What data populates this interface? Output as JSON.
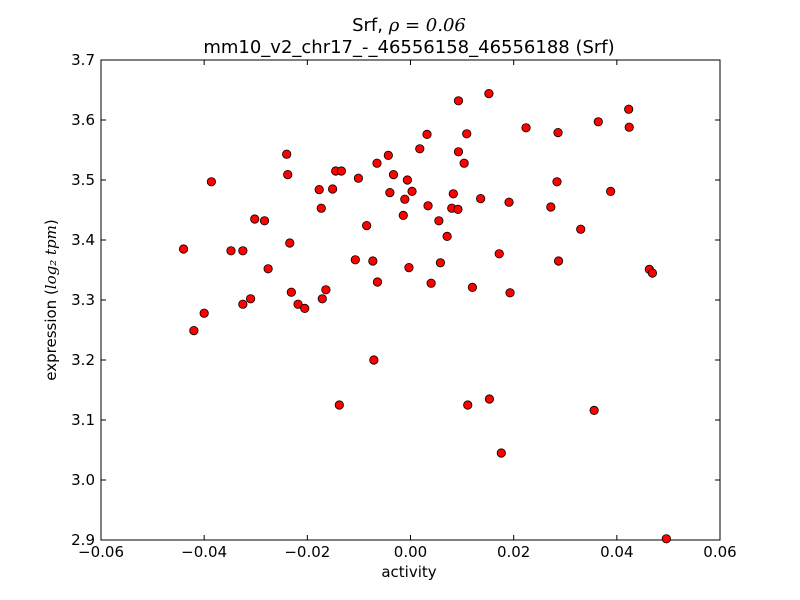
{
  "chart_data": {
    "type": "scatter",
    "title_prefix": "Srf, ",
    "title_rho": "ρ = 0.06",
    "subtitle": "mm10_v2_chr17_-_46556158_46556188 (Srf)",
    "xlabel": "activity",
    "ylabel_text": "expression",
    "ylabel_units": "log₂ tpm",
    "xlim": [
      -0.06,
      0.06
    ],
    "ylim": [
      2.9,
      3.7
    ],
    "xticks": [
      "−0.06",
      "−0.04",
      "−0.02",
      "0.00",
      "0.02",
      "0.04",
      "0.06"
    ],
    "xtick_values": [
      -0.06,
      -0.04,
      -0.02,
      0.0,
      0.02,
      0.04,
      0.06
    ],
    "yticks": [
      "2.9",
      "3.0",
      "3.1",
      "3.2",
      "3.3",
      "3.4",
      "3.5",
      "3.6",
      "3.7"
    ],
    "ytick_values": [
      2.9,
      3.0,
      3.1,
      3.2,
      3.3,
      3.4,
      3.5,
      3.6,
      3.7
    ],
    "grid": false,
    "marker_color": "#ff0000",
    "marker_edge": "#000000",
    "points": [
      {
        "x": -0.044,
        "y": 3.385
      },
      {
        "x": -0.042,
        "y": 3.249
      },
      {
        "x": -0.04,
        "y": 3.278
      },
      {
        "x": -0.0386,
        "y": 3.497
      },
      {
        "x": -0.0348,
        "y": 3.382
      },
      {
        "x": -0.0325,
        "y": 3.382
      },
      {
        "x": -0.0325,
        "y": 3.293
      },
      {
        "x": -0.031,
        "y": 3.302
      },
      {
        "x": -0.0302,
        "y": 3.435
      },
      {
        "x": -0.0283,
        "y": 3.432
      },
      {
        "x": -0.0276,
        "y": 3.352
      },
      {
        "x": -0.024,
        "y": 3.543
      },
      {
        "x": -0.0238,
        "y": 3.509
      },
      {
        "x": -0.0234,
        "y": 3.395
      },
      {
        "x": -0.0231,
        "y": 3.313
      },
      {
        "x": -0.0218,
        "y": 3.293
      },
      {
        "x": -0.0205,
        "y": 3.286
      },
      {
        "x": -0.0177,
        "y": 3.484
      },
      {
        "x": -0.0173,
        "y": 3.453
      },
      {
        "x": -0.0171,
        "y": 3.302
      },
      {
        "x": -0.0164,
        "y": 3.317
      },
      {
        "x": -0.0151,
        "y": 3.485
      },
      {
        "x": -0.0145,
        "y": 3.515
      },
      {
        "x": -0.0134,
        "y": 3.515
      },
      {
        "x": -0.0138,
        "y": 3.125
      },
      {
        "x": -0.0107,
        "y": 3.367
      },
      {
        "x": -0.0101,
        "y": 3.503
      },
      {
        "x": -0.0085,
        "y": 3.424
      },
      {
        "x": -0.0073,
        "y": 3.365
      },
      {
        "x": -0.0071,
        "y": 3.2
      },
      {
        "x": -0.0065,
        "y": 3.528
      },
      {
        "x": -0.0064,
        "y": 3.33
      },
      {
        "x": -0.0043,
        "y": 3.541
      },
      {
        "x": -0.004,
        "y": 3.479
      },
      {
        "x": -0.0033,
        "y": 3.509
      },
      {
        "x": -0.0014,
        "y": 3.441
      },
      {
        "x": -0.0011,
        "y": 3.468
      },
      {
        "x": -0.0006,
        "y": 3.5
      },
      {
        "x": -0.0003,
        "y": 3.354
      },
      {
        "x": 0.0003,
        "y": 3.481
      },
      {
        "x": 0.0018,
        "y": 3.552
      },
      {
        "x": 0.0032,
        "y": 3.576
      },
      {
        "x": 0.0034,
        "y": 3.457
      },
      {
        "x": 0.004,
        "y": 3.328
      },
      {
        "x": 0.0055,
        "y": 3.432
      },
      {
        "x": 0.0058,
        "y": 3.362
      },
      {
        "x": 0.0071,
        "y": 3.406
      },
      {
        "x": 0.008,
        "y": 3.453
      },
      {
        "x": 0.0083,
        "y": 3.477
      },
      {
        "x": 0.0092,
        "y": 3.451
      },
      {
        "x": 0.0093,
        "y": 3.547
      },
      {
        "x": 0.0093,
        "y": 3.632
      },
      {
        "x": 0.0104,
        "y": 3.528
      },
      {
        "x": 0.0109,
        "y": 3.577
      },
      {
        "x": 0.0111,
        "y": 3.125
      },
      {
        "x": 0.012,
        "y": 3.321
      },
      {
        "x": 0.0136,
        "y": 3.469
      },
      {
        "x": 0.0152,
        "y": 3.644
      },
      {
        "x": 0.0153,
        "y": 3.135
      },
      {
        "x": 0.0172,
        "y": 3.377
      },
      {
        "x": 0.0176,
        "y": 3.045
      },
      {
        "x": 0.0191,
        "y": 3.463
      },
      {
        "x": 0.0193,
        "y": 3.312
      },
      {
        "x": 0.0224,
        "y": 3.587
      },
      {
        "x": 0.0272,
        "y": 3.455
      },
      {
        "x": 0.0284,
        "y": 3.497
      },
      {
        "x": 0.0286,
        "y": 3.579
      },
      {
        "x": 0.0287,
        "y": 3.365
      },
      {
        "x": 0.033,
        "y": 3.418
      },
      {
        "x": 0.0356,
        "y": 3.116
      },
      {
        "x": 0.0364,
        "y": 3.597
      },
      {
        "x": 0.0388,
        "y": 3.481
      },
      {
        "x": 0.0423,
        "y": 3.618
      },
      {
        "x": 0.0424,
        "y": 3.588
      },
      {
        "x": 0.0463,
        "y": 3.351
      },
      {
        "x": 0.0469,
        "y": 3.345
      },
      {
        "x": 0.0496,
        "y": 2.902
      }
    ]
  }
}
